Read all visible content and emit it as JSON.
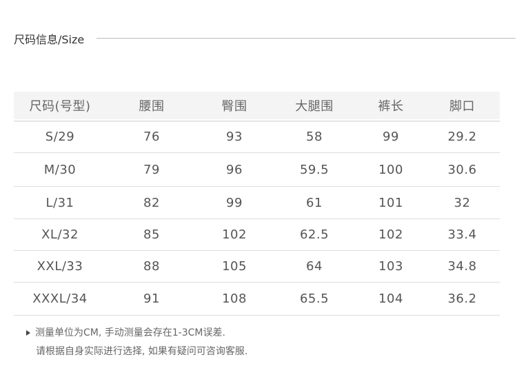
{
  "title": "尺码信息/Size",
  "table": {
    "headers": [
      "尺码(号型)",
      "腰围",
      "臀围",
      "大腿围",
      "裤长",
      "脚口"
    ],
    "rows": [
      [
        "S/29",
        "76",
        "93",
        "58",
        "99",
        "29.2"
      ],
      [
        "M/30",
        "79",
        "96",
        "59.5",
        "100",
        "30.6"
      ],
      [
        "L/31",
        "82",
        "99",
        "61",
        "101",
        "32"
      ],
      [
        "XL/32",
        "85",
        "102",
        "62.5",
        "102",
        "33.4"
      ],
      [
        "XXL/33",
        "88",
        "105",
        "64",
        "103",
        "34.8"
      ],
      [
        "XXXL/34",
        "91",
        "108",
        "65.5",
        "104",
        "36.2"
      ]
    ]
  },
  "notes": {
    "line1": "测量单位为CM, 手动测量会存在1-3CM误差.",
    "line2": "请根据自身实际进行选择, 如果有疑问可咨询客服."
  }
}
